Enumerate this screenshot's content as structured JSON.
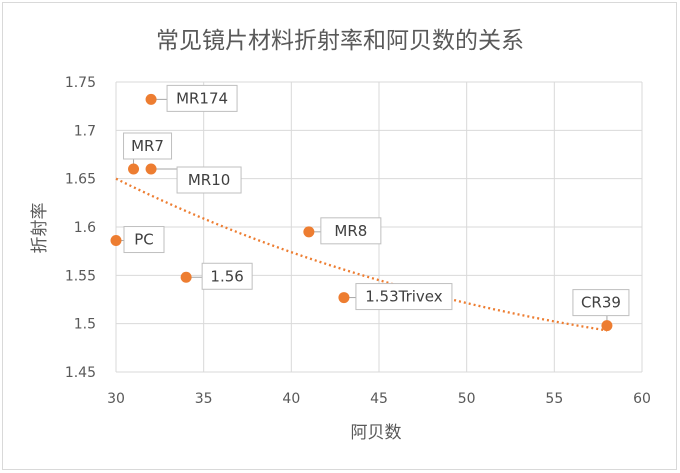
{
  "chart_data": {
    "type": "scatter",
    "title": "常见镜片材料折射率和阿贝数的关系",
    "xlabel": "阿贝数",
    "ylabel": "折射率",
    "xlim": [
      30,
      60
    ],
    "ylim": [
      1.45,
      1.75
    ],
    "x_ticks": [
      "30",
      "35",
      "40",
      "45",
      "50",
      "55",
      "60"
    ],
    "y_ticks": [
      "1.45",
      "1.5",
      "1.55",
      "1.6",
      "1.65",
      "1.7",
      "1.75"
    ],
    "grid": true,
    "series": [
      {
        "points": [
          {
            "label": "MR174",
            "x": 32,
            "y": 1.732
          },
          {
            "label": "MR7",
            "x": 31,
            "y": 1.66
          },
          {
            "label": "MR10",
            "x": 32,
            "y": 1.66
          },
          {
            "label": "PC",
            "x": 30,
            "y": 1.586
          },
          {
            "label": "MR8",
            "x": 41,
            "y": 1.595
          },
          {
            "label": "1.56",
            "x": 34,
            "y": 1.548
          },
          {
            "label": "1.53Trivex",
            "x": 43,
            "y": 1.527
          },
          {
            "label": "CR39",
            "x": 58,
            "y": 1.498
          }
        ],
        "color": "#ed7d31",
        "marker": "circle"
      }
    ],
    "trendline": {
      "style": "dotted",
      "color": "#ed7d31",
      "type": "polynomial",
      "from_x": 30,
      "to_x": 58,
      "values": [
        {
          "x": 30,
          "y": 1.65
        },
        {
          "x": 58,
          "y": 1.493
        }
      ]
    }
  }
}
